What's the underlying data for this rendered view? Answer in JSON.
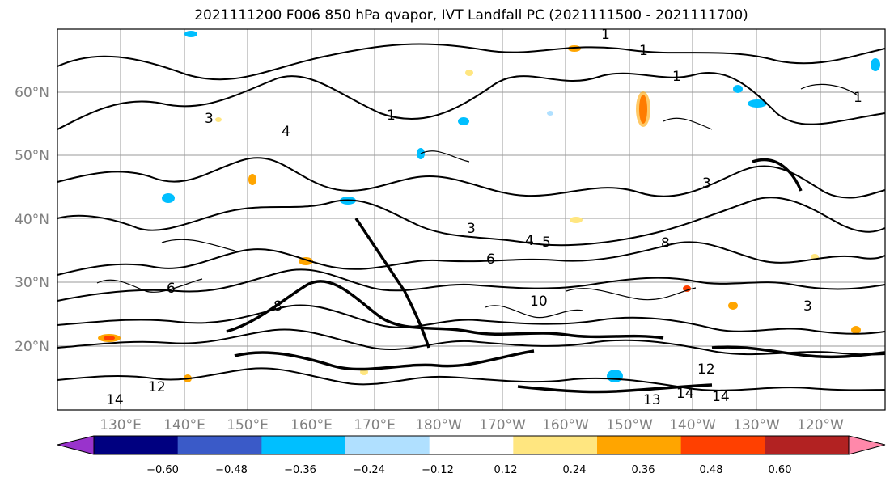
{
  "title": "2021111200 F006 850 hPa qvapor, IVT Landfall PC (2021111500 - 2021111700)",
  "map": {
    "lat_labels": [
      "60°N",
      "50°N",
      "40°N",
      "30°N",
      "20°N"
    ],
    "lon_labels": [
      "130°E",
      "140°E",
      "150°E",
      "160°E",
      "170°E",
      "180°W",
      "170°W",
      "160°W",
      "150°W",
      "140°W",
      "130°W",
      "120°W"
    ],
    "contour_labels": [
      "1",
      "1",
      "1",
      "1",
      "1",
      "3",
      "3",
      "3",
      "4",
      "4",
      "5",
      "6",
      "8",
      "8",
      "10",
      "12",
      "12",
      "13",
      "14",
      "14",
      "14",
      "6",
      "3"
    ]
  },
  "colorbar": {
    "ticks": [
      "−0.60",
      "−0.48",
      "−0.36",
      "−0.24",
      "−0.12",
      "0.12",
      "0.24",
      "0.36",
      "0.48",
      "0.60"
    ],
    "colors": [
      "#9933cc",
      "#000080",
      "#3a5ac8",
      "#00bfff",
      "#b0e0ff",
      "#ffffff",
      "#ffe680",
      "#ffa500",
      "#ff4000",
      "#b22222",
      "#ff88aa"
    ]
  }
}
